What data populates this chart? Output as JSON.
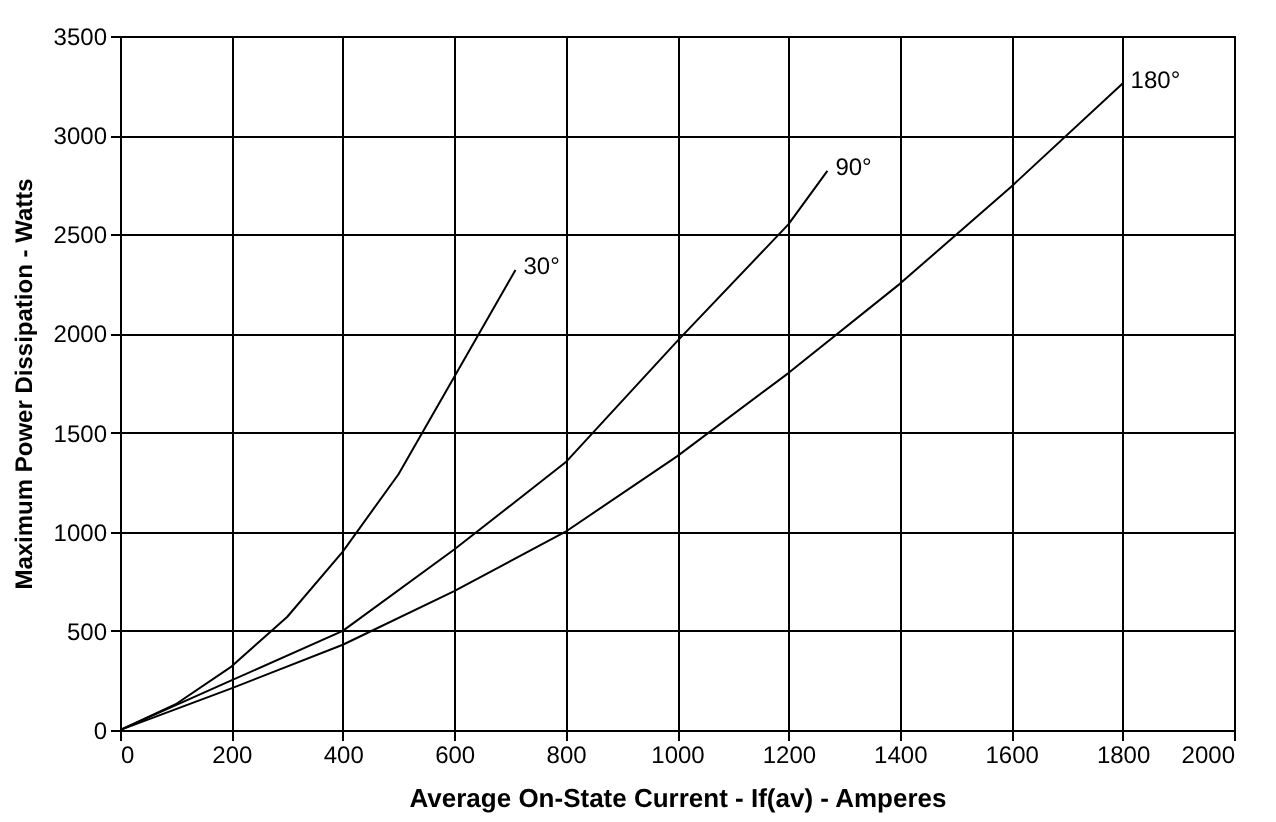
{
  "chart_data": {
    "type": "line",
    "xlabel": "Average On-State Current - If(av) - Amperes",
    "ylabel": "Maximum Power Dissipation - Watts",
    "series": [
      {
        "name": "30°",
        "color": "#000000",
        "x": [
          0,
          100,
          200,
          300,
          400,
          500,
          600,
          710
        ],
        "values": [
          0,
          130,
          320,
          570,
          900,
          1290,
          1780,
          2320
        ]
      },
      {
        "name": "90°",
        "color": "#000000",
        "x": [
          0,
          200,
          400,
          600,
          800,
          1000,
          1200,
          1270
        ],
        "values": [
          0,
          250,
          500,
          910,
          1350,
          1960,
          2550,
          2820
        ]
      },
      {
        "name": "180°",
        "color": "#000000",
        "x": [
          0,
          200,
          400,
          600,
          800,
          1000,
          1200,
          1400,
          1600,
          1800
        ],
        "values": [
          0,
          210,
          430,
          700,
          1000,
          1380,
          1800,
          2250,
          2740,
          3260
        ]
      }
    ],
    "xlim": [
      0,
      2000
    ],
    "xticks": [
      0,
      200,
      400,
      600,
      800,
      1000,
      1200,
      1400,
      1600,
      1800,
      2000
    ],
    "ylim": [
      0,
      3500
    ],
    "yticks": [
      0,
      500,
      1000,
      1500,
      2000,
      2500,
      3000,
      3500
    ],
    "grid": true,
    "marker": "none",
    "line_style": "solid"
  }
}
